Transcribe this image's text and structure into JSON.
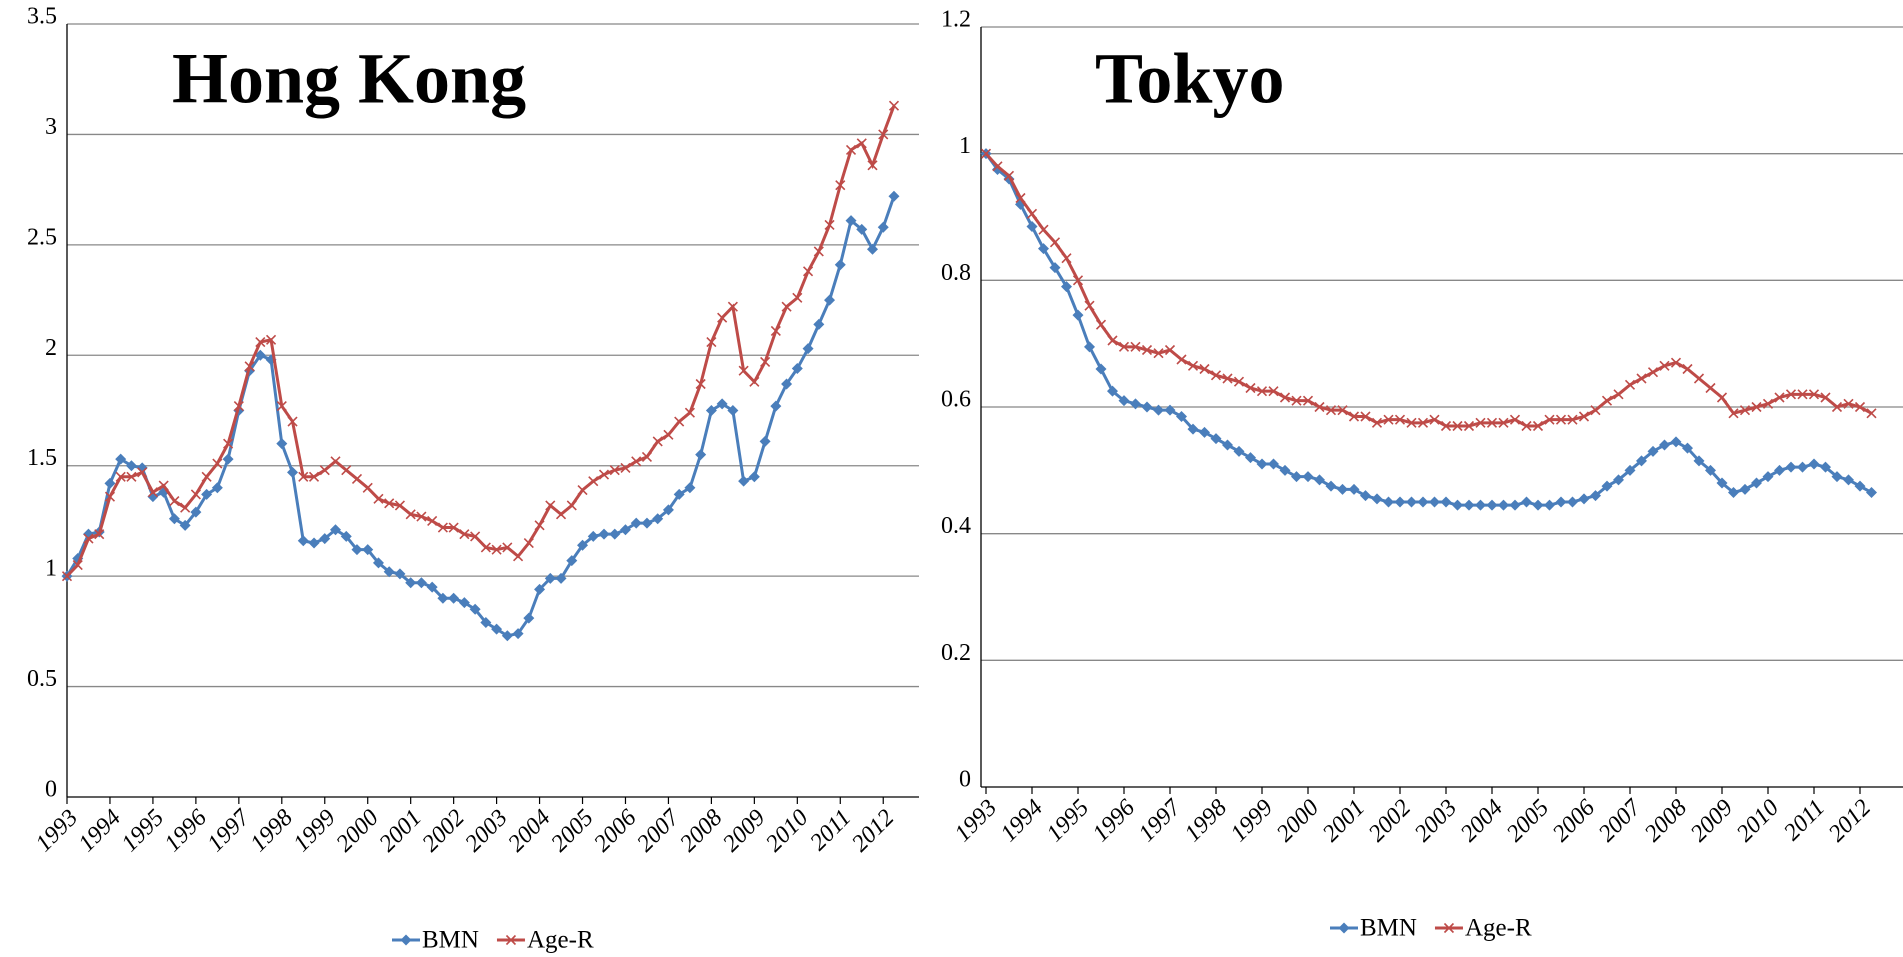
{
  "chart_data": [
    {
      "type": "line",
      "title": "Hong Kong",
      "categories": [
        "1993",
        null,
        null,
        null,
        "1994",
        null,
        null,
        null,
        "1995",
        null,
        null,
        null,
        "1996",
        null,
        null,
        null,
        "1997",
        null,
        null,
        null,
        "1998",
        null,
        null,
        null,
        "1999",
        null,
        null,
        null,
        "2000",
        null,
        null,
        null,
        "2001",
        null,
        null,
        null,
        "2002",
        null,
        null,
        null,
        "2003",
        null,
        null,
        null,
        "2004",
        null,
        null,
        null,
        "2005",
        null,
        null,
        null,
        "2006",
        null,
        null,
        null,
        "2007",
        null,
        null,
        null,
        "2008",
        null,
        null,
        null,
        "2009",
        null,
        null,
        null,
        "2010",
        null,
        null,
        null,
        "2011",
        null,
        null,
        null,
        "2012",
        null
      ],
      "series": [
        {
          "name": "BMN",
          "color": "#4a7ebb",
          "marker": "diamond",
          "values": [
            1.0,
            1.08,
            1.19,
            1.2,
            1.42,
            1.53,
            1.5,
            1.49,
            1.36,
            1.38,
            1.26,
            1.23,
            1.29,
            1.37,
            1.4,
            1.53,
            1.75,
            1.93,
            2.0,
            1.98,
            1.6,
            1.47,
            1.16,
            1.15,
            1.17,
            1.21,
            1.18,
            1.12,
            1.12,
            1.06,
            1.02,
            1.01,
            0.97,
            0.97,
            0.95,
            0.9,
            0.9,
            0.88,
            0.85,
            0.79,
            0.76,
            0.73,
            0.74,
            0.81,
            0.94,
            0.99,
            0.99,
            1.07,
            1.14,
            1.18,
            1.19,
            1.19,
            1.21,
            1.24,
            1.24,
            1.26,
            1.3,
            1.37,
            1.4,
            1.55,
            1.75,
            1.78,
            1.75,
            1.43,
            1.45,
            1.61,
            1.77,
            1.87,
            1.94,
            2.03,
            2.14,
            2.25,
            2.41,
            2.61,
            2.57,
            2.48,
            2.58,
            2.72
          ]
        },
        {
          "name": "Age-R",
          "color": "#be4b48",
          "marker": "x",
          "values": [
            1.0,
            1.05,
            1.17,
            1.19,
            1.36,
            1.45,
            1.45,
            1.47,
            1.38,
            1.41,
            1.34,
            1.31,
            1.37,
            1.45,
            1.51,
            1.6,
            1.77,
            1.95,
            2.06,
            2.07,
            1.77,
            1.7,
            1.45,
            1.45,
            1.48,
            1.52,
            1.48,
            1.44,
            1.4,
            1.35,
            1.33,
            1.32,
            1.28,
            1.27,
            1.25,
            1.22,
            1.22,
            1.19,
            1.18,
            1.13,
            1.12,
            1.13,
            1.09,
            1.15,
            1.23,
            1.32,
            1.28,
            1.32,
            1.39,
            1.43,
            1.46,
            1.48,
            1.49,
            1.52,
            1.54,
            1.61,
            1.64,
            1.7,
            1.74,
            1.87,
            2.06,
            2.17,
            2.22,
            1.93,
            1.88,
            1.97,
            2.11,
            2.22,
            2.26,
            2.38,
            2.47,
            2.59,
            2.77,
            2.93,
            2.96,
            2.86,
            3.0,
            3.13
          ]
        }
      ],
      "ylim": [
        0,
        3.5
      ],
      "yticks": [
        0,
        0.5,
        1,
        1.5,
        2,
        2.5,
        3,
        3.5
      ],
      "grid": true,
      "legend": "bottom"
    },
    {
      "type": "line",
      "title": "Tokyo",
      "categories": [
        "1993",
        null,
        null,
        null,
        "1994",
        null,
        null,
        null,
        "1995",
        null,
        null,
        null,
        "1996",
        null,
        null,
        null,
        "1997",
        null,
        null,
        null,
        "1998",
        null,
        null,
        null,
        "1999",
        null,
        null,
        null,
        "2000",
        null,
        null,
        null,
        "2001",
        null,
        null,
        null,
        "2002",
        null,
        null,
        null,
        "2003",
        null,
        null,
        null,
        "2004",
        null,
        null,
        null,
        "2005",
        null,
        null,
        null,
        "2006",
        null,
        null,
        null,
        "2007",
        null,
        null,
        null,
        "2008",
        null,
        null,
        null,
        "2009",
        null,
        null,
        null,
        "2010",
        null,
        null,
        null,
        "2011",
        null,
        null,
        null,
        "2012",
        null
      ],
      "series": [
        {
          "name": "BMN",
          "color": "#4a7ebb",
          "marker": "diamond",
          "values": [
            1.0,
            0.975,
            0.96,
            0.92,
            0.885,
            0.85,
            0.82,
            0.79,
            0.745,
            0.695,
            0.66,
            0.625,
            0.61,
            0.605,
            0.6,
            0.595,
            0.595,
            0.585,
            0.565,
            0.56,
            0.55,
            0.54,
            0.53,
            0.52,
            0.51,
            0.51,
            0.5,
            0.49,
            0.49,
            0.485,
            0.475,
            0.47,
            0.47,
            0.46,
            0.455,
            0.45,
            0.45,
            0.45,
            0.45,
            0.45,
            0.45,
            0.445,
            0.445,
            0.445,
            0.445,
            0.445,
            0.445,
            0.45,
            0.445,
            0.445,
            0.45,
            0.45,
            0.455,
            0.46,
            0.475,
            0.485,
            0.5,
            0.515,
            0.53,
            0.54,
            0.545,
            0.535,
            0.515,
            0.5,
            0.48,
            0.465,
            0.47,
            0.48,
            0.49,
            0.5,
            0.505,
            0.505,
            0.51,
            0.505,
            0.49,
            0.485,
            0.475,
            0.465
          ]
        },
        {
          "name": "Age-R",
          "color": "#be4b48",
          "marker": "x",
          "values": [
            1.0,
            0.98,
            0.965,
            0.93,
            0.905,
            0.88,
            0.86,
            0.835,
            0.8,
            0.76,
            0.73,
            0.705,
            0.695,
            0.695,
            0.69,
            0.685,
            0.69,
            0.675,
            0.665,
            0.66,
            0.65,
            0.645,
            0.64,
            0.63,
            0.625,
            0.625,
            0.615,
            0.61,
            0.61,
            0.6,
            0.595,
            0.595,
            0.585,
            0.585,
            0.575,
            0.58,
            0.58,
            0.575,
            0.575,
            0.58,
            0.57,
            0.57,
            0.57,
            0.575,
            0.575,
            0.575,
            0.58,
            0.57,
            0.57,
            0.58,
            0.58,
            0.58,
            0.585,
            0.595,
            0.61,
            0.62,
            0.635,
            0.645,
            0.655,
            0.665,
            0.67,
            0.66,
            0.645,
            0.63,
            0.615,
            0.59,
            0.595,
            0.6,
            0.605,
            0.615,
            0.62,
            0.62,
            0.62,
            0.615,
            0.6,
            0.605,
            0.6,
            0.59
          ]
        }
      ],
      "ylim": [
        0,
        1.2
      ],
      "yticks": [
        0,
        0.2,
        0.4,
        0.6,
        0.8,
        1,
        1.2
      ],
      "grid": true,
      "legend": "bottom"
    }
  ]
}
